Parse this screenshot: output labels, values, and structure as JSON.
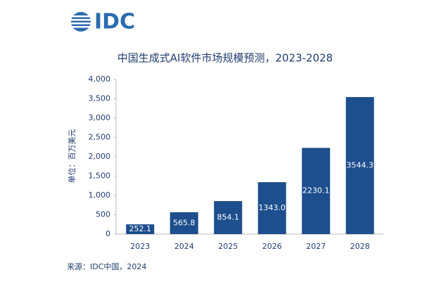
{
  "logo": "IDC",
  "chart_data": {
    "type": "bar",
    "title": "中国生成式AI软件市场规模预测，2023-2028",
    "y_label": "单位：百万美元",
    "categories": [
      "2023",
      "2024",
      "2025",
      "2026",
      "2027",
      "2028"
    ],
    "values": [
      252.1,
      565.8,
      854.1,
      1343.0,
      2230.1,
      3544.3
    ],
    "value_labels": [
      "252.1",
      "565.8",
      "854.1",
      "1343.0",
      "2230.1",
      "3544.3"
    ],
    "color": "#1d4e8d",
    "ylim": [
      0,
      4000
    ],
    "yticks": [
      0,
      500,
      {
        "value": 1000,
        "label": "1,000"
      },
      {
        "value": 1500,
        "label": "1,500"
      },
      {
        "value": 2000,
        "label": "2,000"
      },
      {
        "value": 2500,
        "label": "2,500"
      },
      {
        "value": 3000,
        "label": "3,000"
      },
      {
        "value": 3500,
        "label": "3,500"
      },
      {
        "value": 4000,
        "label": "4,000"
      }
    ],
    "grid": false
  },
  "source": "来源：IDC中国，2024"
}
